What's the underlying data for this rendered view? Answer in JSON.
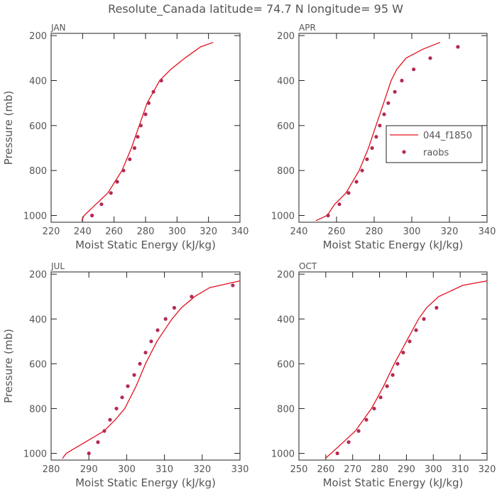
{
  "title": "Resolute_Canada  latitude= 74.7 N longitude= 95 W",
  "chart_data": [
    {
      "type": "line",
      "title": "JAN",
      "xlabel": "Moist Static Energy (kJ/kg)",
      "ylabel": "Pressure (mb)",
      "xlim": [
        220,
        340
      ],
      "xticks": [
        220,
        240,
        260,
        280,
        300,
        320,
        340
      ],
      "ylim": [
        1030,
        190
      ],
      "yticks": [
        200,
        400,
        600,
        800,
        1000
      ],
      "series": [
        {
          "name": "044_f1850",
          "color": "#e3101e",
          "style": "line",
          "x": [
            239.4,
            241,
            256,
            265,
            271,
            276,
            281,
            289,
            296,
            305,
            315,
            323
          ],
          "y": [
            1023,
            1000,
            900,
            800,
            700,
            600,
            500,
            400,
            350,
            300,
            250,
            230
          ]
        },
        {
          "name": "raobs",
          "color": "#b42a55",
          "style": "markers",
          "x": [
            246,
            252,
            258,
            262,
            266,
            270,
            273,
            275,
            277,
            280,
            282,
            285,
            290
          ],
          "y": [
            1000,
            950,
            900,
            850,
            800,
            750,
            700,
            650,
            600,
            550,
            500,
            450,
            400
          ]
        }
      ]
    },
    {
      "type": "line",
      "title": "APR",
      "xlabel": "Moist Static Energy (kJ/kg)",
      "legend": "center right",
      "xlim": [
        240,
        340
      ],
      "xticks": [
        240,
        260,
        280,
        300,
        320,
        340
      ],
      "ylim": [
        1030,
        190
      ],
      "yticks": [
        200,
        400,
        600,
        800,
        1000
      ],
      "series": [
        {
          "name": "044_f1850",
          "color": "#e3101e",
          "style": "line",
          "x": [
            249,
            255,
            259,
            265,
            272,
            277,
            281,
            285,
            289,
            292,
            297,
            306,
            315
          ],
          "y": [
            1023,
            1000,
            950,
            900,
            800,
            700,
            600,
            500,
            400,
            350,
            300,
            260,
            230
          ]
        },
        {
          "name": "raobs",
          "color": "#b42a55",
          "style": "markers",
          "x": [
            255.5,
            261.5,
            266.4,
            270.6,
            273.6,
            276.2,
            278.9,
            281.1,
            283,
            285.3,
            287.5,
            291,
            294.7,
            301,
            309.8,
            324.5
          ],
          "y": [
            1000,
            950,
            900,
            850,
            800,
            750,
            700,
            650,
            600,
            550,
            500,
            450,
            400,
            350,
            300,
            250
          ]
        }
      ]
    },
    {
      "type": "line",
      "title": "JUL",
      "xlabel": "Moist Static Energy (kJ/kg)",
      "ylabel": "Pressure (mb)",
      "xlim": [
        280,
        330
      ],
      "xticks": [
        280,
        290,
        300,
        310,
        320,
        330
      ],
      "ylim": [
        1030,
        190
      ],
      "yticks": [
        200,
        400,
        600,
        800,
        1000
      ],
      "series": [
        {
          "name": "044_f1850",
          "color": "#e3101e",
          "style": "line",
          "x": [
            283,
            284,
            289,
            294,
            297,
            299.5,
            302.5,
            305,
            308,
            312,
            314.5,
            318,
            322,
            330
          ],
          "y": [
            1023,
            1000,
            950,
            900,
            850,
            800,
            700,
            600,
            500,
            400,
            350,
            300,
            260,
            230
          ]
        },
        {
          "name": "raobs",
          "color": "#b42a55",
          "style": "markers",
          "x": [
            290,
            292.4,
            294.1,
            295.6,
            297.3,
            298.8,
            300.3,
            302,
            303.5,
            305,
            306.5,
            308.2,
            310.3,
            312.6,
            317.2,
            328.1
          ],
          "y": [
            1000,
            950,
            900,
            850,
            800,
            750,
            700,
            650,
            600,
            550,
            500,
            450,
            400,
            350,
            300,
            250
          ]
        }
      ]
    },
    {
      "type": "line",
      "title": "OCT",
      "xlabel": "Moist Static Energy (kJ/kg)",
      "xlim": [
        250,
        320
      ],
      "xticks": [
        250,
        260,
        270,
        280,
        290,
        300,
        310,
        320
      ],
      "ylim": [
        1030,
        190
      ],
      "yticks": [
        200,
        400,
        600,
        800,
        1000
      ],
      "series": [
        {
          "name": "044_f1850",
          "color": "#e3101e",
          "style": "line",
          "x": [
            259.8,
            262,
            266.5,
            271,
            277,
            281.5,
            285.5,
            290,
            294.5,
            297.5,
            302,
            311,
            320
          ],
          "y": [
            1023,
            1000,
            950,
            900,
            800,
            700,
            600,
            500,
            400,
            350,
            300,
            250,
            230
          ]
        },
        {
          "name": "raobs",
          "color": "#b42a55",
          "style": "markers",
          "x": [
            264.3,
            268.5,
            272.2,
            275.1,
            278,
            280.4,
            282.8,
            284.9,
            286.7,
            288.8,
            291.2,
            293.6,
            296.5,
            301.2
          ],
          "y": [
            1000,
            950,
            900,
            850,
            800,
            750,
            700,
            650,
            600,
            550,
            500,
            450,
            400,
            350
          ]
        }
      ]
    }
  ]
}
